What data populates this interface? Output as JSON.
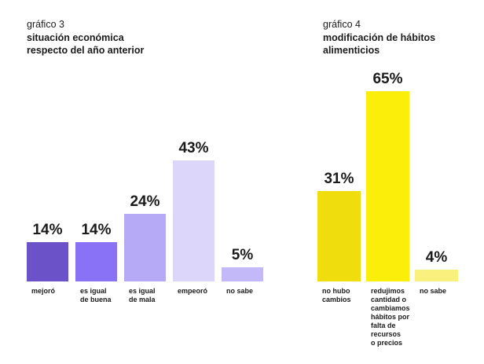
{
  "chart_data": [
    {
      "type": "bar",
      "figure_label": "gráfico 3",
      "title_lines": [
        "situación económica",
        "respecto del año anterior"
      ],
      "title": "situación económica respecto del año anterior",
      "categories": [
        [
          "mejoró"
        ],
        [
          "es igual",
          "de buena"
        ],
        [
          "es igual",
          "de mala"
        ],
        [
          "empeoró"
        ],
        [
          "no sabe"
        ]
      ],
      "values": [
        14,
        14,
        24,
        43,
        5
      ],
      "value_labels": [
        "14%",
        "14%",
        "24%",
        "43%",
        "5%"
      ],
      "colors": [
        "#6b52c9",
        "#8a72f7",
        "#b6a9f6",
        "#dcd6fb",
        "#c4b9f8"
      ],
      "unit": "%",
      "ylim": [
        0,
        43
      ],
      "grid": false,
      "legend": "none"
    },
    {
      "type": "bar",
      "figure_label": "gráfico 4",
      "title_lines": [
        "modificación de hábitos",
        "alimenticios"
      ],
      "title": "modificación de hábitos alimenticios",
      "categories": [
        [
          "no hubo",
          "cambios"
        ],
        [
          "redujimos",
          "cantidad o",
          "cambiamos",
          "hábitos por",
          "falta de",
          "recursos",
          "o precios"
        ],
        [
          "no sabe"
        ]
      ],
      "values": [
        31,
        65,
        4
      ],
      "value_labels": [
        "31%",
        "65%",
        "4%"
      ],
      "colors": [
        "#efdd0d",
        "#fbee0a",
        "#f9f07e"
      ],
      "unit": "%",
      "ylim": [
        0,
        65
      ],
      "grid": false,
      "legend": "none"
    }
  ]
}
